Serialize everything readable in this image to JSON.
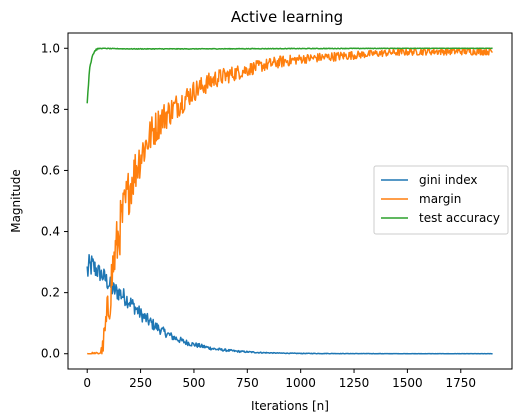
{
  "chart_data": {
    "type": "line",
    "title": "Active learning",
    "xlabel": "Iterations [n]",
    "ylabel": "Magnitude",
    "xlim": [
      -90,
      1990
    ],
    "ylim": [
      -0.05,
      1.05
    ],
    "xticks": [
      0,
      250,
      500,
      750,
      1000,
      1250,
      1500,
      1750
    ],
    "yticks": [
      0.0,
      0.2,
      0.4,
      0.6,
      0.8,
      1.0
    ],
    "xtick_labels": [
      "0",
      "250",
      "500",
      "750",
      "1000",
      "1250",
      "1500",
      "1750"
    ],
    "ytick_labels": [
      "0.0",
      "0.2",
      "0.4",
      "0.6",
      "0.8",
      "1.0"
    ],
    "grid": false,
    "legend_position": "center-right",
    "series": [
      {
        "name": "gini index",
        "color": "#1f77b4",
        "x": [
          0,
          20,
          50,
          80,
          100,
          120,
          150,
          200,
          250,
          300,
          350,
          400,
          450,
          500,
          600,
          700,
          800,
          900,
          1000,
          1200,
          1400,
          1600,
          1900
        ],
        "y": [
          0.27,
          0.29,
          0.27,
          0.25,
          0.23,
          0.21,
          0.2,
          0.17,
          0.13,
          0.1,
          0.075,
          0.055,
          0.04,
          0.03,
          0.015,
          0.008,
          0.004,
          0.002,
          0.001,
          0.0005,
          0.0003,
          0.0002,
          0.0002
        ],
        "noise": [
          0.05,
          0.04,
          0.03,
          0.03,
          0.03,
          0.03,
          0.03,
          0.025,
          0.022,
          0.02,
          0.015,
          0.012,
          0.01,
          0.008,
          0.005,
          0.003,
          0.002,
          0.001,
          0.001,
          0.0005,
          0.0003,
          0.0002,
          0.0002
        ]
      },
      {
        "name": "margin",
        "color": "#ff7f0e",
        "x": [
          0,
          50,
          70,
          80,
          100,
          120,
          150,
          200,
          250,
          300,
          350,
          400,
          450,
          500,
          600,
          700,
          800,
          900,
          1000,
          1100,
          1200,
          1300,
          1400,
          1500,
          1600,
          1700,
          1800,
          1900
        ],
        "y": [
          0.0,
          0.0,
          0.01,
          0.05,
          0.15,
          0.28,
          0.4,
          0.55,
          0.65,
          0.72,
          0.77,
          0.8,
          0.83,
          0.86,
          0.9,
          0.92,
          0.94,
          0.955,
          0.965,
          0.97,
          0.975,
          0.98,
          0.985,
          0.988,
          0.99,
          0.99,
          0.99,
          0.99
        ],
        "noise": [
          0.005,
          0.005,
          0.02,
          0.06,
          0.08,
          0.09,
          0.09,
          0.08,
          0.07,
          0.06,
          0.05,
          0.045,
          0.04,
          0.035,
          0.03,
          0.025,
          0.02,
          0.02,
          0.015,
          0.015,
          0.015,
          0.012,
          0.012,
          0.012,
          0.012,
          0.012,
          0.012,
          0.012
        ]
      },
      {
        "name": "test accuracy",
        "color": "#2ca02c",
        "x": [
          0,
          5,
          10,
          20,
          30,
          40,
          50,
          60,
          80,
          100,
          200,
          500,
          1000,
          1500,
          1900
        ],
        "y": [
          0.82,
          0.88,
          0.93,
          0.97,
          0.985,
          0.995,
          0.998,
          1.0,
          1.0,
          0.999,
          0.998,
          0.998,
          0.999,
          1.0,
          1.0
        ],
        "noise": [
          0.0,
          0.01,
          0.01,
          0.01,
          0.005,
          0.003,
          0.002,
          0.002,
          0.001,
          0.001,
          0.001,
          0.001,
          0.001,
          0.001,
          0.001
        ]
      }
    ]
  }
}
